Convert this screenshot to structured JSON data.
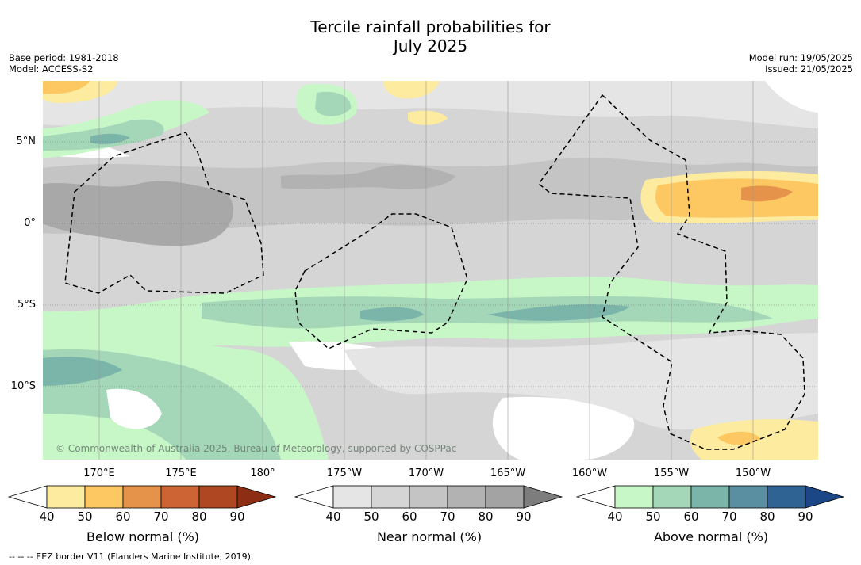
{
  "title_line1": "Tercile rainfall probabilities for",
  "title_line2": "July 2025",
  "meta_left": [
    "Base period: 1981-2018",
    "Model: ACCESS-S2"
  ],
  "meta_right": [
    "Model run: 19/05/2025",
    "Issued: 21/05/2025"
  ],
  "lon_labels": [
    "170°E",
    "175°E",
    "180°",
    "175°W",
    "170°W",
    "165°W",
    "160°W",
    "155°W",
    "150°W"
  ],
  "lat_labels": [
    "5°N",
    "0°",
    "5°S",
    "10°S"
  ],
  "copyright": "© Commonwealth of Australia 2025, Bureau of Meteorology, supported by COSPPac",
  "eez_note": "-- -- -- EEZ border V11 (Flanders Marine Institute, 2019).",
  "colorbars": [
    {
      "label": "Below normal (%)",
      "ticks": [
        "40",
        "50",
        "60",
        "70",
        "80",
        "90"
      ],
      "colors": [
        "#ffffff",
        "#fdeb9f",
        "#fdc862",
        "#e5934a",
        "#cc6433",
        "#af4722",
        "#8c2d14"
      ]
    },
    {
      "label": "Near normal (%)",
      "ticks": [
        "40",
        "50",
        "60",
        "70",
        "80",
        "90"
      ],
      "colors": [
        "#ffffff",
        "#e5e5e5",
        "#d5d5d5",
        "#c4c4c4",
        "#b2b2b2",
        "#a3a3a3",
        "#7d7d7d"
      ]
    },
    {
      "label": "Above normal (%)",
      "ticks": [
        "40",
        "50",
        "60",
        "70",
        "80",
        "90"
      ],
      "colors": [
        "#ffffff",
        "#c7f6c7",
        "#a3d7b8",
        "#7bb5aa",
        "#5a8fa2",
        "#2f6394",
        "#1c4786"
      ]
    }
  ]
}
